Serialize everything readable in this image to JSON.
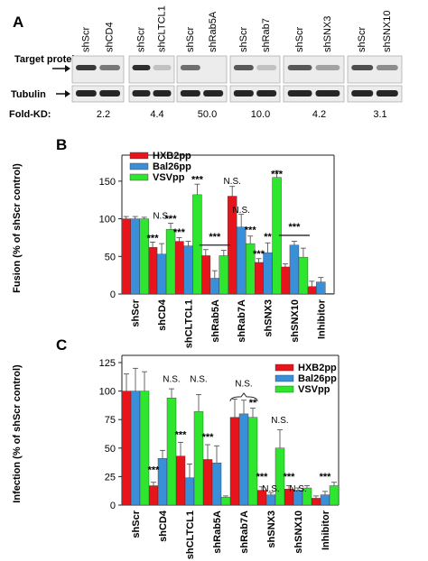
{
  "panel_a": {
    "letter": "A",
    "row_labels": {
      "target": "Target protein",
      "tubulin": "Tubulin",
      "foldkd": "Fold-KD:"
    },
    "groups": [
      {
        "lanes": [
          "shScr",
          "shCD4"
        ],
        "foldkd": "2.2"
      },
      {
        "lanes": [
          "shScr",
          "shCLTCL1"
        ],
        "foldkd": "4.4"
      },
      {
        "lanes": [
          "shScr",
          "shRab5A"
        ],
        "foldkd": "50.0"
      },
      {
        "lanes": [
          "shScr",
          "shRab7"
        ],
        "foldkd": "10.0"
      },
      {
        "lanes": [
          "shScr",
          "shSNX3"
        ],
        "foldkd": "4.2"
      },
      {
        "lanes": [
          "shScr",
          "shSNX10"
        ],
        "foldkd": "3.1"
      }
    ]
  },
  "chart_data": [
    {
      "type": "bar",
      "panel": "B",
      "ylabel": "Fusion (% of shScr control)",
      "ylim": [
        0,
        175
      ],
      "yticks": [
        0,
        50,
        100,
        150
      ],
      "categories": [
        "shScr",
        "shCD4",
        "shCLTCL1",
        "shRab5A",
        "shRab7A",
        "shSNX3",
        "shSNX10",
        "Inhibitor"
      ],
      "series": [
        {
          "name": "HXB2pp",
          "color": "#e8141c",
          "values": [
            100,
            62,
            70,
            51,
            130,
            42,
            36,
            10
          ],
          "errors": [
            3,
            7,
            5,
            8,
            13,
            5,
            4,
            7
          ]
        },
        {
          "name": "Bal26pp",
          "color": "#3a8fd9",
          "values": [
            100,
            53,
            64,
            21,
            89,
            55,
            65,
            16
          ],
          "errors": [
            3,
            14,
            6,
            10,
            17,
            13,
            5,
            6
          ]
        },
        {
          "name": "VSVpp",
          "color": "#2ee62e",
          "values": [
            100,
            86,
            132,
            51,
            67,
            155,
            49,
            1
          ],
          "errors": [
            2,
            8,
            14,
            7,
            10,
            9,
            12,
            0
          ]
        }
      ],
      "annotations": [
        {
          "text": "***",
          "category": 1,
          "series": 0,
          "y": 70
        },
        {
          "text": "N.S.",
          "category": 1,
          "series": 1,
          "y": 100
        },
        {
          "text": "***",
          "category": 1,
          "series": 2,
          "y": 96
        },
        {
          "text": "***",
          "category": 2,
          "series": 0,
          "y": 78
        },
        {
          "text": "***",
          "category": 2,
          "series": 2,
          "y": 148
        },
        {
          "text": "***",
          "category": 3,
          "series": 1,
          "y": 72
        },
        {
          "text": "N.S.",
          "category": 4,
          "series": 0,
          "y": 146
        },
        {
          "text": "N.S.",
          "category": 4,
          "series": 1,
          "y": 108
        },
        {
          "text": "***",
          "category": 4,
          "series": 2,
          "y": 81
        },
        {
          "text": "***",
          "category": 5,
          "series": 0,
          "y": 49
        },
        {
          "text": "**",
          "category": 5,
          "series": 1,
          "y": 72
        },
        {
          "text": "***",
          "category": 5,
          "series": 2,
          "y": 155
        },
        {
          "text": "***",
          "category": 6,
          "series": 1,
          "y": 85
        }
      ],
      "bracket_lines": [
        {
          "category": 3,
          "y": 65
        },
        {
          "category": 6,
          "y": 78
        }
      ]
    },
    {
      "type": "bar",
      "panel": "C",
      "ylabel": "Infection (% of shScr control)",
      "ylim": [
        0,
        125
      ],
      "yticks": [
        0,
        25,
        50,
        75,
        100,
        125
      ],
      "categories": [
        "shScr",
        "shCD4",
        "shCLTCL1",
        "shRab5A",
        "shRab7A",
        "shSNX3",
        "shSNX10",
        "Inhibitor"
      ],
      "series": [
        {
          "name": "HXB2pp",
          "color": "#e8141c",
          "values": [
            100,
            17,
            43,
            40,
            77,
            13,
            14,
            6
          ],
          "errors": [
            15,
            3,
            12,
            13,
            16,
            3,
            3,
            2
          ]
        },
        {
          "name": "Bal26pp",
          "color": "#3a8fd9",
          "values": [
            100,
            41,
            24,
            37,
            80,
            9,
            13,
            9
          ],
          "errors": [
            20,
            7,
            12,
            15,
            12,
            2,
            2,
            3
          ]
        },
        {
          "name": "VSVpp",
          "color": "#2ee62e",
          "values": [
            100,
            94,
            82,
            7,
            77,
            50,
            15,
            17
          ],
          "errors": [
            17,
            8,
            15,
            1,
            8,
            16,
            2,
            3
          ]
        }
      ],
      "annotations": [
        {
          "text": "***",
          "category": 1,
          "series": 0,
          "y": 28
        },
        {
          "text": "N.S.",
          "category": 1,
          "series": 2,
          "y": 108
        },
        {
          "text": "***",
          "category": 2,
          "series": 0,
          "y": 59
        },
        {
          "text": "N.S.",
          "category": 2,
          "series": 2,
          "y": 108
        },
        {
          "text": "***",
          "category": 3,
          "series": 0,
          "y": 57
        },
        {
          "text": "N.S.",
          "category": 4,
          "series": 1,
          "y": 104
        },
        {
          "text": "**",
          "category": 4,
          "series": 2,
          "y": 87
        },
        {
          "text": "***",
          "category": 5,
          "series": 0,
          "y": 22
        },
        {
          "text": "N.S.",
          "category": 5,
          "series": 2,
          "y": 72
        },
        {
          "text": "***",
          "category": 6,
          "series": 0,
          "y": 22
        },
        {
          "text": "***",
          "category": 7,
          "series": 1,
          "y": 22
        },
        {
          "text": "N.S.",
          "category": 5,
          "series": 1,
          "y": 12
        },
        {
          "text": "N.S.",
          "category": 6,
          "series": 1,
          "y": 12
        }
      ],
      "bracket_lines": [
        {
          "category": 4,
          "y": 95,
          "brace": true
        }
      ]
    }
  ],
  "panels": {
    "b_letter": "B",
    "c_letter": "C"
  }
}
